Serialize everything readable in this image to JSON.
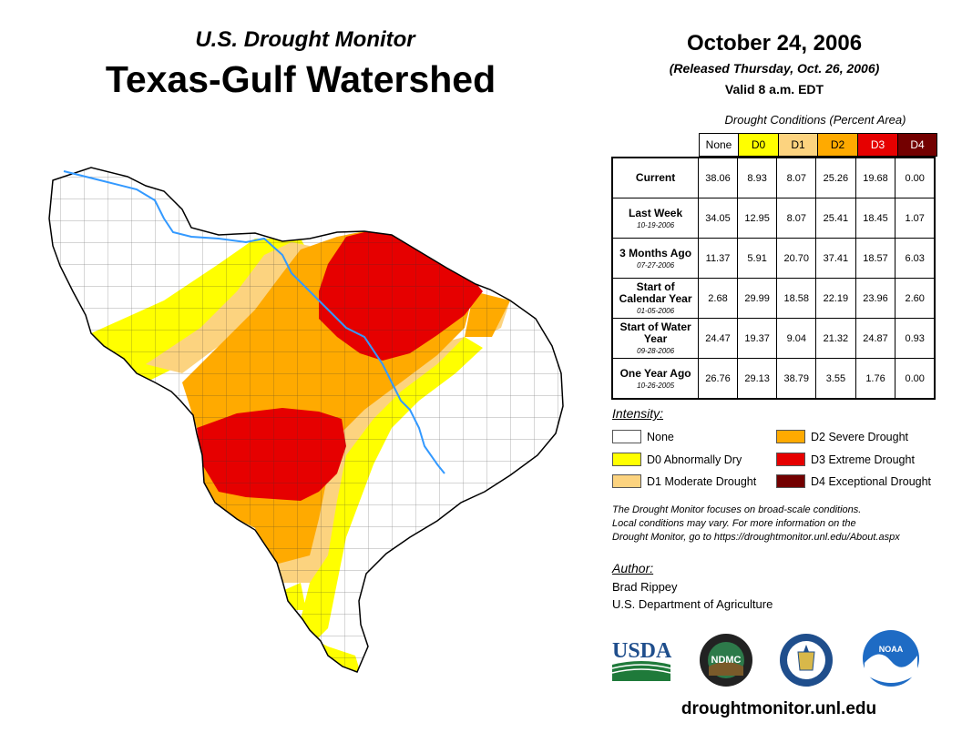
{
  "header": {
    "subtitle": "U.S. Drought Monitor",
    "title": "Texas-Gulf Watershed",
    "date": "October 24, 2006",
    "released": "(Released Thursday, Oct. 26, 2006)",
    "valid": "Valid 8 a.m. EDT"
  },
  "table": {
    "caption": "Drought Conditions (Percent Area)",
    "columns": [
      "None",
      "D0",
      "D1",
      "D2",
      "D3",
      "D4"
    ],
    "column_colors": [
      "#ffffff",
      "#ffff00",
      "#fcd37f",
      "#ffaa00",
      "#e60000",
      "#730000"
    ],
    "rows": [
      {
        "label": "Current",
        "date": "",
        "values": [
          "38.06",
          "8.93",
          "8.07",
          "25.26",
          "19.68",
          "0.00"
        ]
      },
      {
        "label": "Last Week",
        "date": "10-19-2006",
        "values": [
          "34.05",
          "12.95",
          "8.07",
          "25.41",
          "18.45",
          "1.07"
        ]
      },
      {
        "label": "3 Months Ago",
        "date": "07-27-2006",
        "values": [
          "11.37",
          "5.91",
          "20.70",
          "37.41",
          "18.57",
          "6.03"
        ]
      },
      {
        "label": "Start of Calendar Year",
        "date": "01-05-2006",
        "values": [
          "2.68",
          "29.99",
          "18.58",
          "22.19",
          "23.96",
          "2.60"
        ]
      },
      {
        "label": "Start of Water Year",
        "date": "09-28-2006",
        "values": [
          "24.47",
          "19.37",
          "9.04",
          "21.32",
          "24.87",
          "0.93"
        ]
      },
      {
        "label": "One Year Ago",
        "date": "10-26-2005",
        "values": [
          "26.76",
          "29.13",
          "38.79",
          "3.55",
          "1.76",
          "0.00"
        ]
      }
    ]
  },
  "legend": {
    "title": "Intensity:",
    "items": [
      {
        "label": "None",
        "color": "#ffffff"
      },
      {
        "label": "D0 Abnormally Dry",
        "color": "#ffff00"
      },
      {
        "label": "D1 Moderate Drought",
        "color": "#fcd37f"
      },
      {
        "label": "D2 Severe Drought",
        "color": "#ffaa00"
      },
      {
        "label": "D3 Extreme Drought",
        "color": "#e60000"
      },
      {
        "label": "D4 Exceptional Drought",
        "color": "#730000"
      }
    ]
  },
  "note": {
    "line1": "The Drought Monitor focuses on broad-scale conditions.",
    "line2": "Local conditions may vary. For more information on the",
    "line3": "Drought Monitor, go to https://droughtmonitor.unl.edu/About.aspx"
  },
  "author": {
    "label": "Author:",
    "name": "Brad Rippey",
    "org": "U.S. Department of Agriculture"
  },
  "logos": {
    "usda": "USDA",
    "ndmc": "NDMC",
    "noaa": "NOAA"
  },
  "footer_url": "droughtmonitor.unl.edu"
}
